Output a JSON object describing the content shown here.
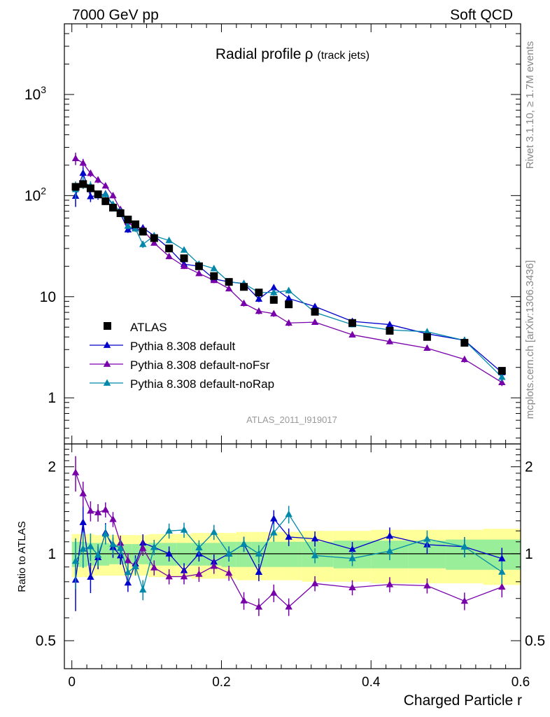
{
  "header": {
    "left": "7000 GeV pp",
    "right": "Soft QCD"
  },
  "side_texts": {
    "rivet": "Rivet 3.1.10, ≥ 1.7M events",
    "mcplots": "mcplots.cern.ch [arXiv:1306.3436]"
  },
  "chart_data": {
    "type": "scatter",
    "title": "Radial profile",
    "title_symbol": "ρ",
    "title_suffix": "(track jets)",
    "analysis_label": "ATLAS_2011_I919017",
    "xlabel": "Charged Particle r",
    "ratio_ylabel": "Ratio to ATLAS",
    "main": {
      "yscale": "log",
      "ylim": [
        0.35,
        5000
      ],
      "ytick_labels": [
        {
          "value": 1,
          "label": "1"
        },
        {
          "value": 10,
          "label": "10"
        },
        {
          "value": 100,
          "label": "10",
          "sup": "2"
        },
        {
          "value": 1000,
          "label": "10",
          "sup": "3"
        }
      ]
    },
    "ratio": {
      "yscale": "log",
      "ylim": [
        0.4,
        2.4
      ],
      "ytick_labels": [
        {
          "value": 0.5,
          "label": "0.5"
        },
        {
          "value": 1,
          "label": "1"
        },
        {
          "value": 2,
          "label": "2"
        }
      ]
    },
    "xlim": [
      -0.01,
      0.6
    ],
    "xtick_labels": [
      {
        "value": 0,
        "label": "0"
      },
      {
        "value": 0.2,
        "label": "0.2"
      },
      {
        "value": 0.4,
        "label": "0.4"
      },
      {
        "value": 0.6,
        "label": "0.6"
      }
    ],
    "x": [
      0.005,
      0.015,
      0.025,
      0.035,
      0.045,
      0.055,
      0.065,
      0.075,
      0.085,
      0.095,
      0.11,
      0.13,
      0.15,
      0.17,
      0.19,
      0.21,
      0.23,
      0.25,
      0.27,
      0.29,
      0.325,
      0.375,
      0.425,
      0.475,
      0.525,
      0.575
    ],
    "data": {
      "name": "ATLAS",
      "values": [
        122,
        130,
        118,
        103,
        88,
        76,
        67,
        58,
        52,
        44,
        38,
        30,
        24,
        20,
        16,
        14,
        12.5,
        11,
        9.3,
        8.4,
        7.1,
        5.5,
        4.6,
        4.0,
        3.5,
        1.85
      ],
      "band_inner": [
        0.1,
        0.1,
        0.09,
        0.09,
        0.09,
        0.08,
        0.08,
        0.08,
        0.08,
        0.08,
        0.09,
        0.09,
        0.09,
        0.09,
        0.09,
        0.1,
        0.1,
        0.1,
        0.1,
        0.1,
        0.1,
        0.11,
        0.11,
        0.11,
        0.12,
        0.12
      ],
      "band_outer": [
        0.17,
        0.17,
        0.17,
        0.16,
        0.16,
        0.16,
        0.16,
        0.16,
        0.16,
        0.16,
        0.17,
        0.17,
        0.17,
        0.18,
        0.18,
        0.18,
        0.19,
        0.19,
        0.19,
        0.19,
        0.2,
        0.2,
        0.21,
        0.21,
        0.21,
        0.22
      ]
    },
    "series": [
      {
        "name": "Pythia 8.308 default",
        "color": "#0000cc",
        "values": [
          99,
          167,
          98,
          100,
          104,
          80,
          66,
          46,
          48,
          48,
          40,
          30,
          21,
          20,
          15,
          14,
          13.5,
          9.5,
          12.3,
          9.6,
          8.0,
          5.7,
          5.3,
          4.3,
          3.7,
          1.78
        ],
        "rel_err": [
          0.22,
          0.15,
          0.12,
          0.09,
          0.08,
          0.08,
          0.07,
          0.07,
          0.07,
          0.07,
          0.06,
          0.06,
          0.06,
          0.06,
          0.06,
          0.06,
          0.06,
          0.07,
          0.07,
          0.07,
          0.06,
          0.06,
          0.07,
          0.07,
          0.08,
          0.09
        ]
      },
      {
        "name": "Pythia 8.308 default-noFsr",
        "color": "#7700aa",
        "values": [
          233,
          210,
          166,
          143,
          125,
          100,
          73,
          55,
          47,
          46,
          34,
          25,
          20,
          17,
          14.5,
          12,
          8.6,
          7.2,
          6.8,
          5.5,
          5.6,
          4.2,
          3.6,
          3.1,
          2.4,
          1.42
        ],
        "rel_err": [
          0.14,
          0.1,
          0.08,
          0.07,
          0.06,
          0.06,
          0.06,
          0.06,
          0.06,
          0.06,
          0.06,
          0.06,
          0.06,
          0.06,
          0.06,
          0.06,
          0.07,
          0.07,
          0.07,
          0.07,
          0.06,
          0.06,
          0.06,
          0.06,
          0.07,
          0.08
        ]
      },
      {
        "name": "Pythia 8.308 default-noRap",
        "color": "#0088aa",
        "values": [
          115,
          135,
          125,
          102,
          103,
          82,
          70,
          50,
          47,
          33,
          40,
          36,
          29,
          21,
          19,
          14,
          13.5,
          11,
          11,
          11.5,
          7.0,
          5.3,
          4.7,
          4.5,
          3.7,
          1.6
        ],
        "rel_err": [
          0.2,
          0.14,
          0.11,
          0.09,
          0.08,
          0.08,
          0.07,
          0.07,
          0.07,
          0.08,
          0.06,
          0.06,
          0.06,
          0.06,
          0.06,
          0.06,
          0.06,
          0.07,
          0.07,
          0.07,
          0.06,
          0.06,
          0.07,
          0.07,
          0.08,
          0.09
        ]
      }
    ],
    "legend_position": "lower-left"
  }
}
